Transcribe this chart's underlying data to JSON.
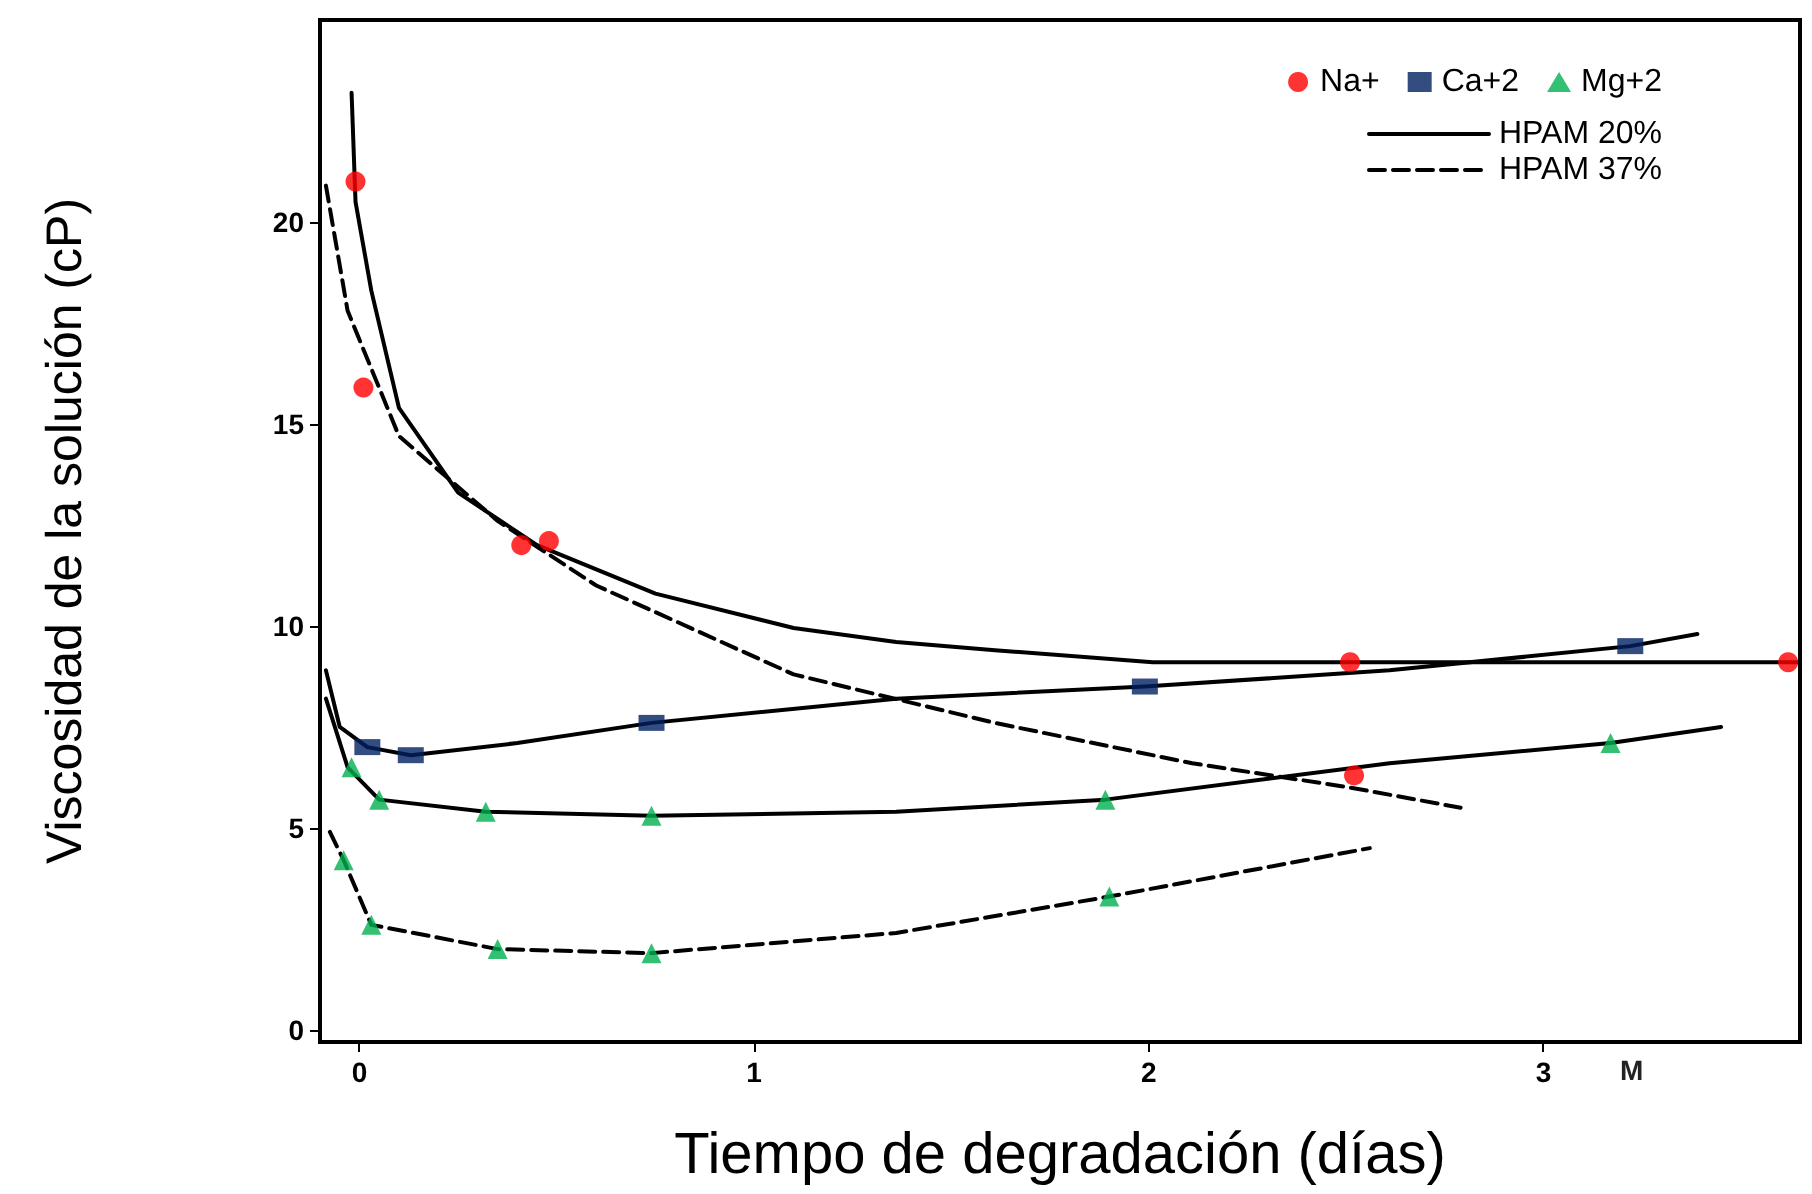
{
  "chart_data": {
    "type": "scatter",
    "xlabel": "Tiempo de degradación (días)",
    "ylabel": "Viscosidad de la solución (cP)",
    "xlim": [
      -0.1,
      3.65
    ],
    "xticks": [
      0,
      1,
      2,
      3
    ],
    "ylim": [
      -0.3,
      25
    ],
    "yticks": [
      0,
      5,
      10,
      15,
      20
    ],
    "grid": false,
    "legend": "top right",
    "annotations": [
      "M"
    ],
    "series": [
      {
        "name": "Na+",
        "marker": "circle",
        "color": "#ff0000",
        "x": [
          -0.01,
          0.01,
          0.41,
          0.48,
          2.51,
          3.62,
          2.52
        ],
        "values": [
          21.0,
          15.9,
          12.0,
          12.1,
          9.1,
          9.1,
          6.3
        ]
      },
      {
        "name": "Ca+2",
        "marker": "square",
        "color": "#002060",
        "x": [
          0.02,
          0.13,
          0.74,
          1.99,
          3.22
        ],
        "values": [
          7.0,
          6.8,
          7.6,
          8.5,
          9.5
        ]
      },
      {
        "name": "Mg+2",
        "marker": "triangle",
        "color": "#00b050",
        "x": [
          -0.02,
          0.05,
          0.32,
          0.74,
          1.89,
          3.17,
          -0.04,
          0.03,
          0.35,
          0.74,
          1.9
        ],
        "values": [
          6.5,
          5.7,
          5.4,
          5.3,
          5.7,
          7.1,
          4.2,
          2.6,
          2.0,
          1.9,
          3.3
        ]
      },
      {
        "name": "HPAM 20%",
        "type": "line",
        "marker": "none",
        "line_style": "solid",
        "color": "#000000",
        "x": [
          -0.02,
          -0.01,
          0.03,
          0.1,
          0.25,
          0.45,
          0.75,
          1.1,
          1.36,
          1.61,
          2.01,
          2.51,
          3.11,
          3.65
        ],
        "values": [
          23.2,
          20.5,
          18.3,
          15.4,
          13.3,
          12.0,
          10.8,
          9.95,
          9.6,
          9.4,
          9.1,
          9.1,
          9.1,
          9.1
        ]
      },
      {
        "type": "line",
        "marker": "none",
        "line_style": "solid",
        "color": "#000000",
        "x": [
          -0.085,
          -0.05,
          0.02,
          0.13,
          0.4,
          0.74,
          1.36,
          1.99,
          2.61,
          3.22,
          3.39
        ],
        "values": [
          8.9,
          7.5,
          7.0,
          6.8,
          7.1,
          7.6,
          8.2,
          8.5,
          8.9,
          9.5,
          9.8
        ]
      },
      {
        "type": "line",
        "marker": "none",
        "line_style": "solid",
        "color": "#000000",
        "x": [
          -0.085,
          -0.03,
          0.05,
          0.32,
          0.74,
          1.36,
          1.89,
          2.61,
          3.17,
          3.45
        ],
        "values": [
          8.2,
          6.5,
          5.7,
          5.4,
          5.3,
          5.4,
          5.7,
          6.6,
          7.1,
          7.5
        ]
      },
      {
        "name": "HPAM 37%",
        "type": "line",
        "marker": "none",
        "line_style": "dashed",
        "color": "#000000",
        "x": [
          -0.085,
          -0.03,
          0.1,
          0.35,
          0.6,
          1.1,
          1.61,
          2.11,
          2.51,
          2.79
        ],
        "values": [
          20.9,
          17.8,
          14.7,
          12.6,
          11.0,
          8.8,
          7.6,
          6.6,
          6.0,
          5.5
        ]
      },
      {
        "type": "line",
        "marker": "none",
        "line_style": "dashed",
        "color": "#000000",
        "x": [
          -0.075,
          -0.04,
          0.03,
          0.35,
          0.74,
          1.36,
          1.9,
          2.56
        ],
        "values": [
          4.9,
          4.2,
          2.6,
          2.0,
          1.9,
          2.4,
          3.3,
          4.5
        ]
      }
    ]
  }
}
